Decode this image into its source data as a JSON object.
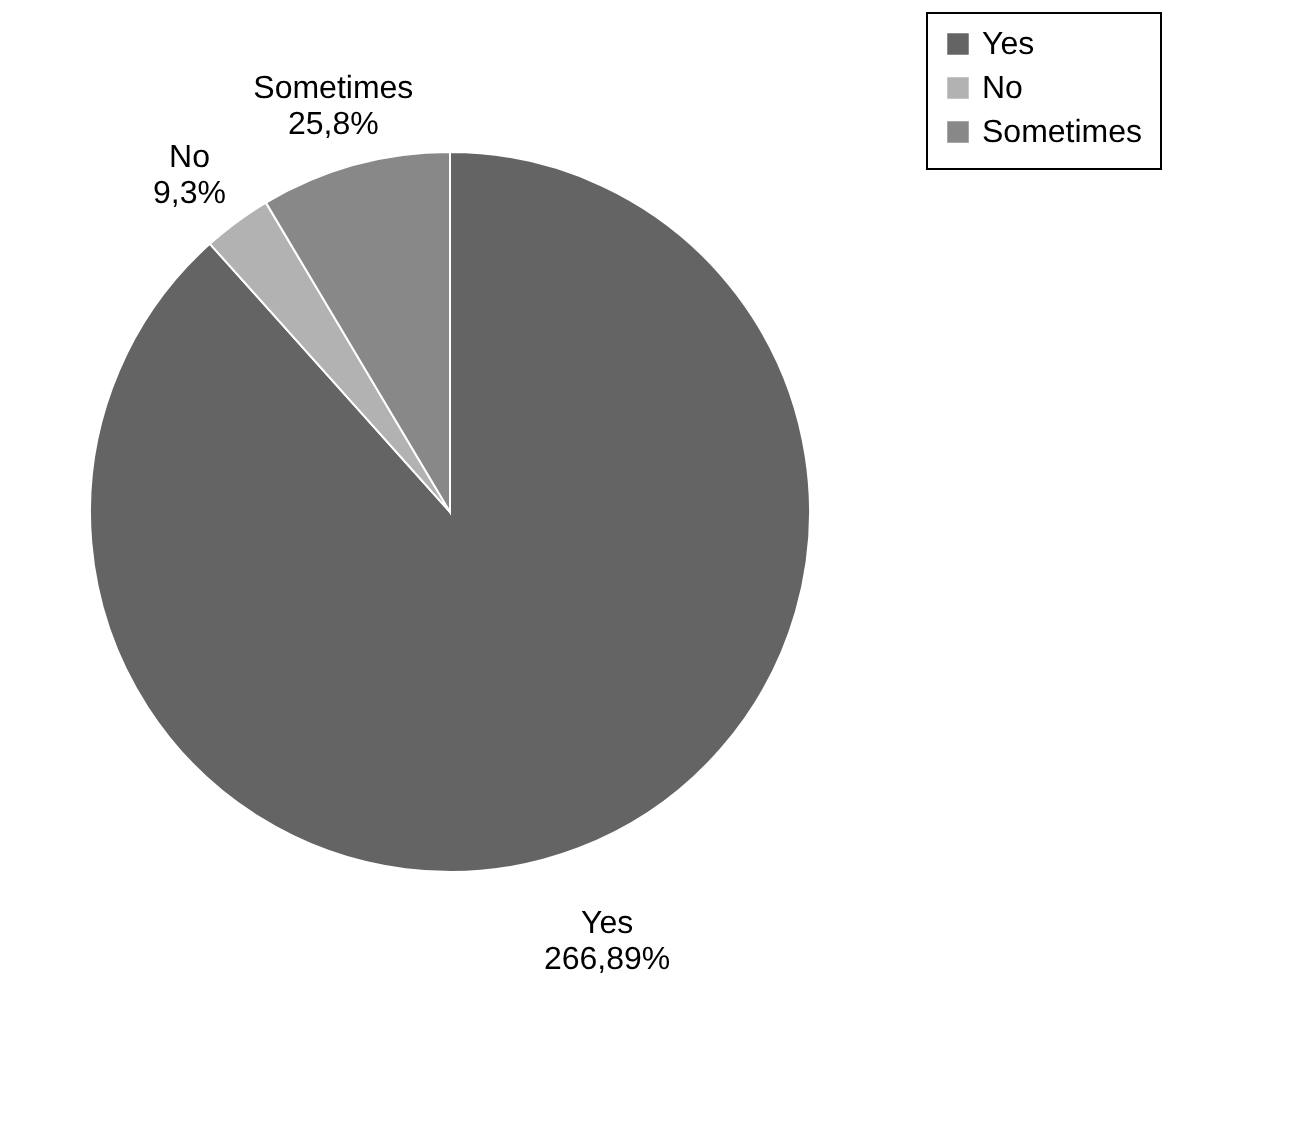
{
  "chart_data": {
    "type": "pie",
    "categories": [
      "Yes",
      "No",
      "Sometimes"
    ],
    "values": [
      266.89,
      9.3,
      25.8
    ],
    "value_labels": [
      "266,89%",
      "9,3%",
      "25,8%"
    ],
    "colors": [
      "#646464",
      "#b2b2b2",
      "#888888"
    ],
    "legend": "right"
  }
}
